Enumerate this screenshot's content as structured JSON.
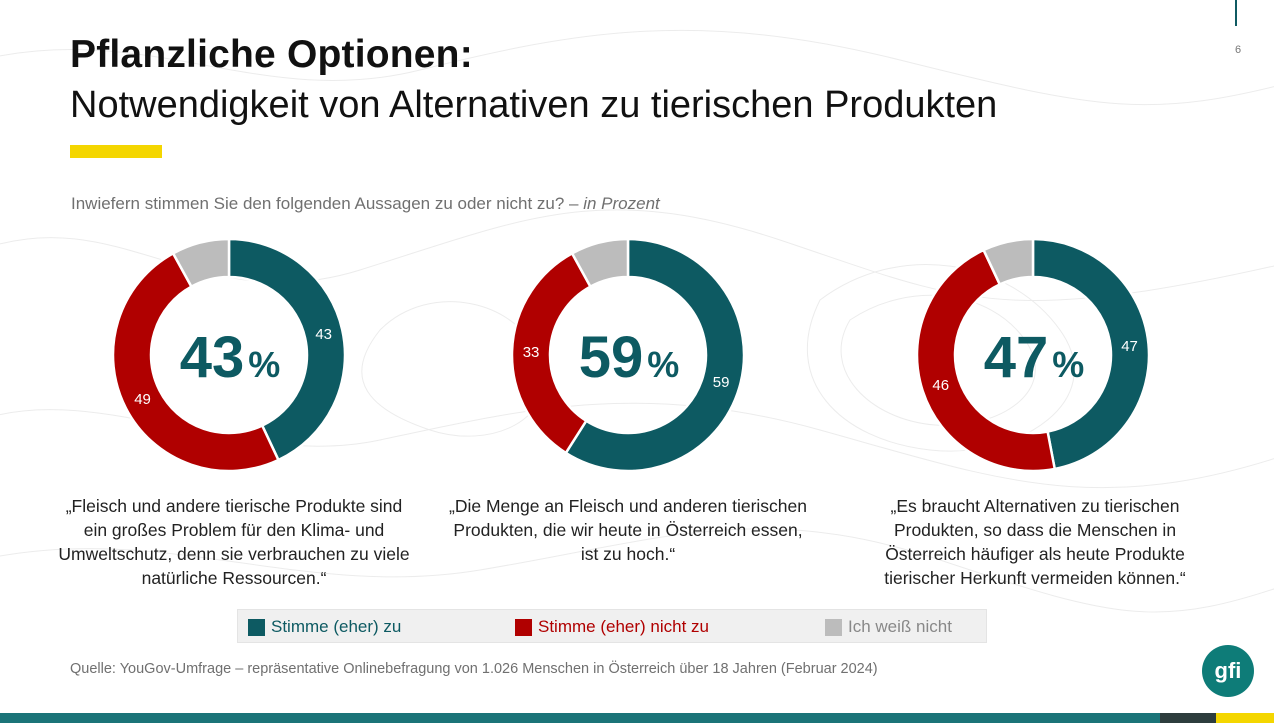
{
  "page": {
    "number": "6",
    "title": "Pflanzliche Optionen:",
    "subtitle": "Notwendigkeit von Alternativen zu tierischen Produkten",
    "question": "Inwiefern stimmen Sie den folgenden Aussagen zu oder nicht zu? – ",
    "question_unit": "in Prozent",
    "source": "Quelle: YouGov-Umfrage – repräsentative Onlinebefragung von 1.026 Menschen in Österreich über 18 Jahren (Februar 2024)",
    "logo_text": "gfi"
  },
  "colors": {
    "agree": "#0d5a62",
    "disagree": "#b00000",
    "dont_know": "#bcbcbc",
    "accent_yellow": "#f4d600",
    "teal_bar": "#1b7478"
  },
  "legend": [
    {
      "label": "Stimme (eher) zu",
      "color": "#0d5a62"
    },
    {
      "label": "Stimme (eher) nicht zu",
      "color": "#b00000"
    },
    {
      "label": "Ich weiß nicht",
      "color": "#bcbcbc"
    }
  ],
  "chart_data": [
    {
      "type": "pie",
      "style": "donut",
      "center_value": "43",
      "center_unit": "%",
      "labels": [
        "Stimme (eher) zu",
        "Stimme (eher) nicht zu",
        "Ich weiß nicht"
      ],
      "values": [
        43,
        49,
        8
      ],
      "value_labels": [
        "43",
        "49",
        ""
      ],
      "caption": "„Fleisch und andere tierische Produkte sind ein großes Problem für den Klima- und Umweltschutz, denn sie verbrauchen zu viele natürliche Ressourcen.“"
    },
    {
      "type": "pie",
      "style": "donut",
      "center_value": "59",
      "center_unit": "%",
      "labels": [
        "Stimme (eher) zu",
        "Stimme (eher) nicht zu",
        "Ich weiß nicht"
      ],
      "values": [
        59,
        33,
        8
      ],
      "value_labels": [
        "59",
        "33",
        ""
      ],
      "caption": "„Die Menge an Fleisch und anderen tierischen Produkten, die wir heute in Österreich essen, ist zu hoch.“"
    },
    {
      "type": "pie",
      "style": "donut",
      "center_value": "47",
      "center_unit": "%",
      "labels": [
        "Stimme (eher) zu",
        "Stimme (eher) nicht zu",
        "Ich weiß nicht"
      ],
      "values": [
        47,
        46,
        7
      ],
      "value_labels": [
        "47",
        "46",
        ""
      ],
      "caption": "„Es braucht Alternativen zu tierischen Produkten, so dass die Menschen in Österreich häufiger als heute Produkte tierischer Herkunft vermeiden können.“"
    }
  ]
}
